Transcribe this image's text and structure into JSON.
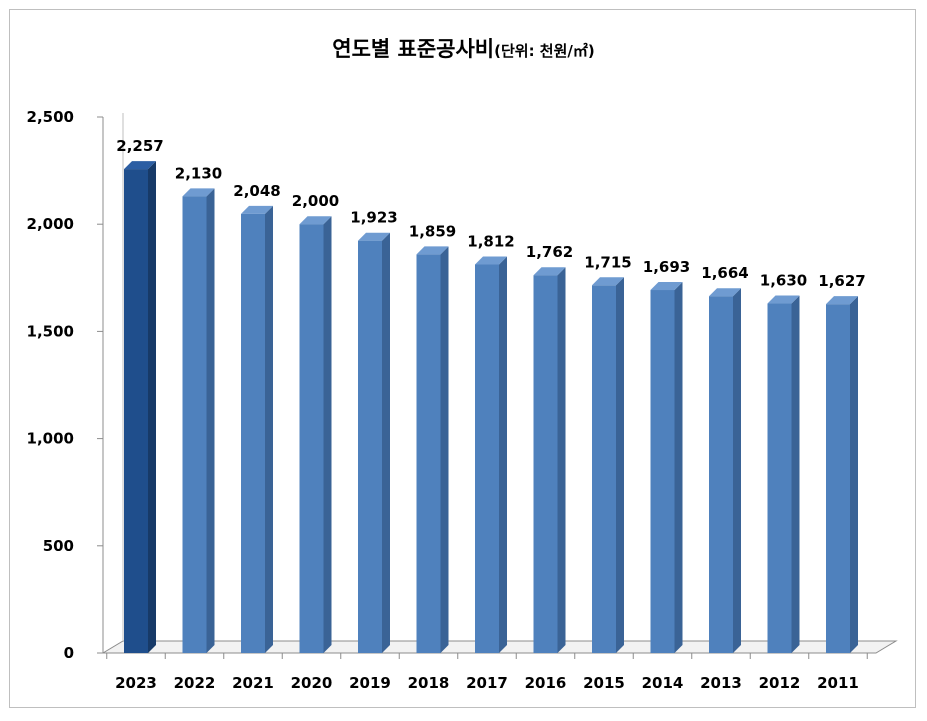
{
  "chart_data": {
    "type": "bar",
    "title": "연도별 표준공사비",
    "title_unit": "(단위: 천원/㎡)",
    "categories": [
      "2023",
      "2022",
      "2021",
      "2020",
      "2019",
      "2018",
      "2017",
      "2016",
      "2015",
      "2014",
      "2013",
      "2012",
      "2011"
    ],
    "values": [
      2257,
      2130,
      2048,
      2000,
      1923,
      1859,
      1812,
      1762,
      1715,
      1693,
      1664,
      1630,
      1627
    ],
    "data_labels": [
      "2,257",
      "2,130",
      "2,048",
      "2,000",
      "1,923",
      "1,859",
      "1,812",
      "1,762",
      "1,715",
      "1,693",
      "1,664",
      "1,630",
      "1,627"
    ],
    "y_ticks": [
      0,
      500,
      1000,
      1500,
      2000,
      2500
    ],
    "y_tick_labels": [
      "0",
      "500",
      "1,000",
      "1,500",
      "2,000",
      "2,500"
    ],
    "ylim": [
      0,
      2500
    ],
    "xlabel": "",
    "ylabel": "",
    "grid": false,
    "legend": "none",
    "style": "3d-column",
    "colors": {
      "highlight": "#1f4e8c",
      "highlight_side": "#173a68",
      "bar": "#4f81bd",
      "bar_side": "#3a6396",
      "bar_top": "#6f9bd1",
      "axis": "#8c8c8c",
      "floor": "#d9d9d9"
    }
  }
}
